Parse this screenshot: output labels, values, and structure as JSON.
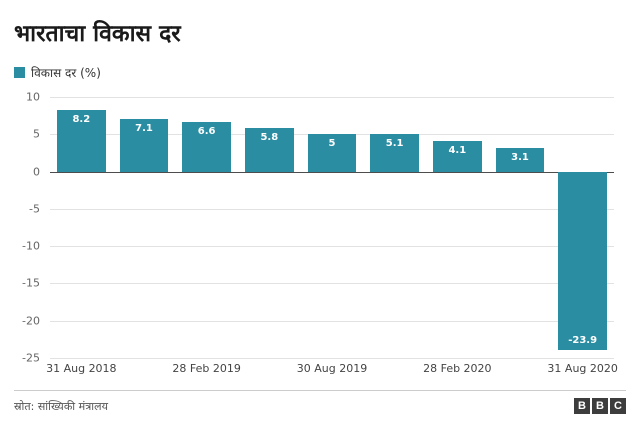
{
  "title": "भारताचा विकास दर",
  "legend": {
    "label": "विकास दर (%)"
  },
  "source": "स्रोत: सांख्यिकी मंत्रालय",
  "logo": {
    "letters": [
      "B",
      "B",
      "C"
    ]
  },
  "colors": {
    "bar": "#2a8da1",
    "grid": "#e2e2e2",
    "zero_line": "#4d4d4d"
  },
  "chart_data": {
    "type": "bar",
    "title": "भारताचा विकास दर",
    "series_name": "विकास दर (%)",
    "values": [
      8.2,
      7.1,
      6.6,
      5.8,
      5,
      5.1,
      4.1,
      3.1,
      -23.9
    ],
    "bar_labels": [
      "8.2",
      "7.1",
      "6.6",
      "5.8",
      "5",
      "5.1",
      "4.1",
      "3.1",
      "-23.9"
    ],
    "x_tick_labels": [
      "31 Aug 2018",
      "28 Feb 2019",
      "30 Aug 2019",
      "28 Feb 2020",
      "31 Aug 2020"
    ],
    "x_tick_positions": [
      0,
      2,
      4,
      6,
      8
    ],
    "y_ticks": [
      10,
      5,
      0,
      -5,
      -10,
      -15,
      -20,
      -25
    ],
    "ylim": [
      -25,
      10
    ],
    "grid": true,
    "legend_position": "top-left",
    "bar_color": "#2a8da1"
  }
}
